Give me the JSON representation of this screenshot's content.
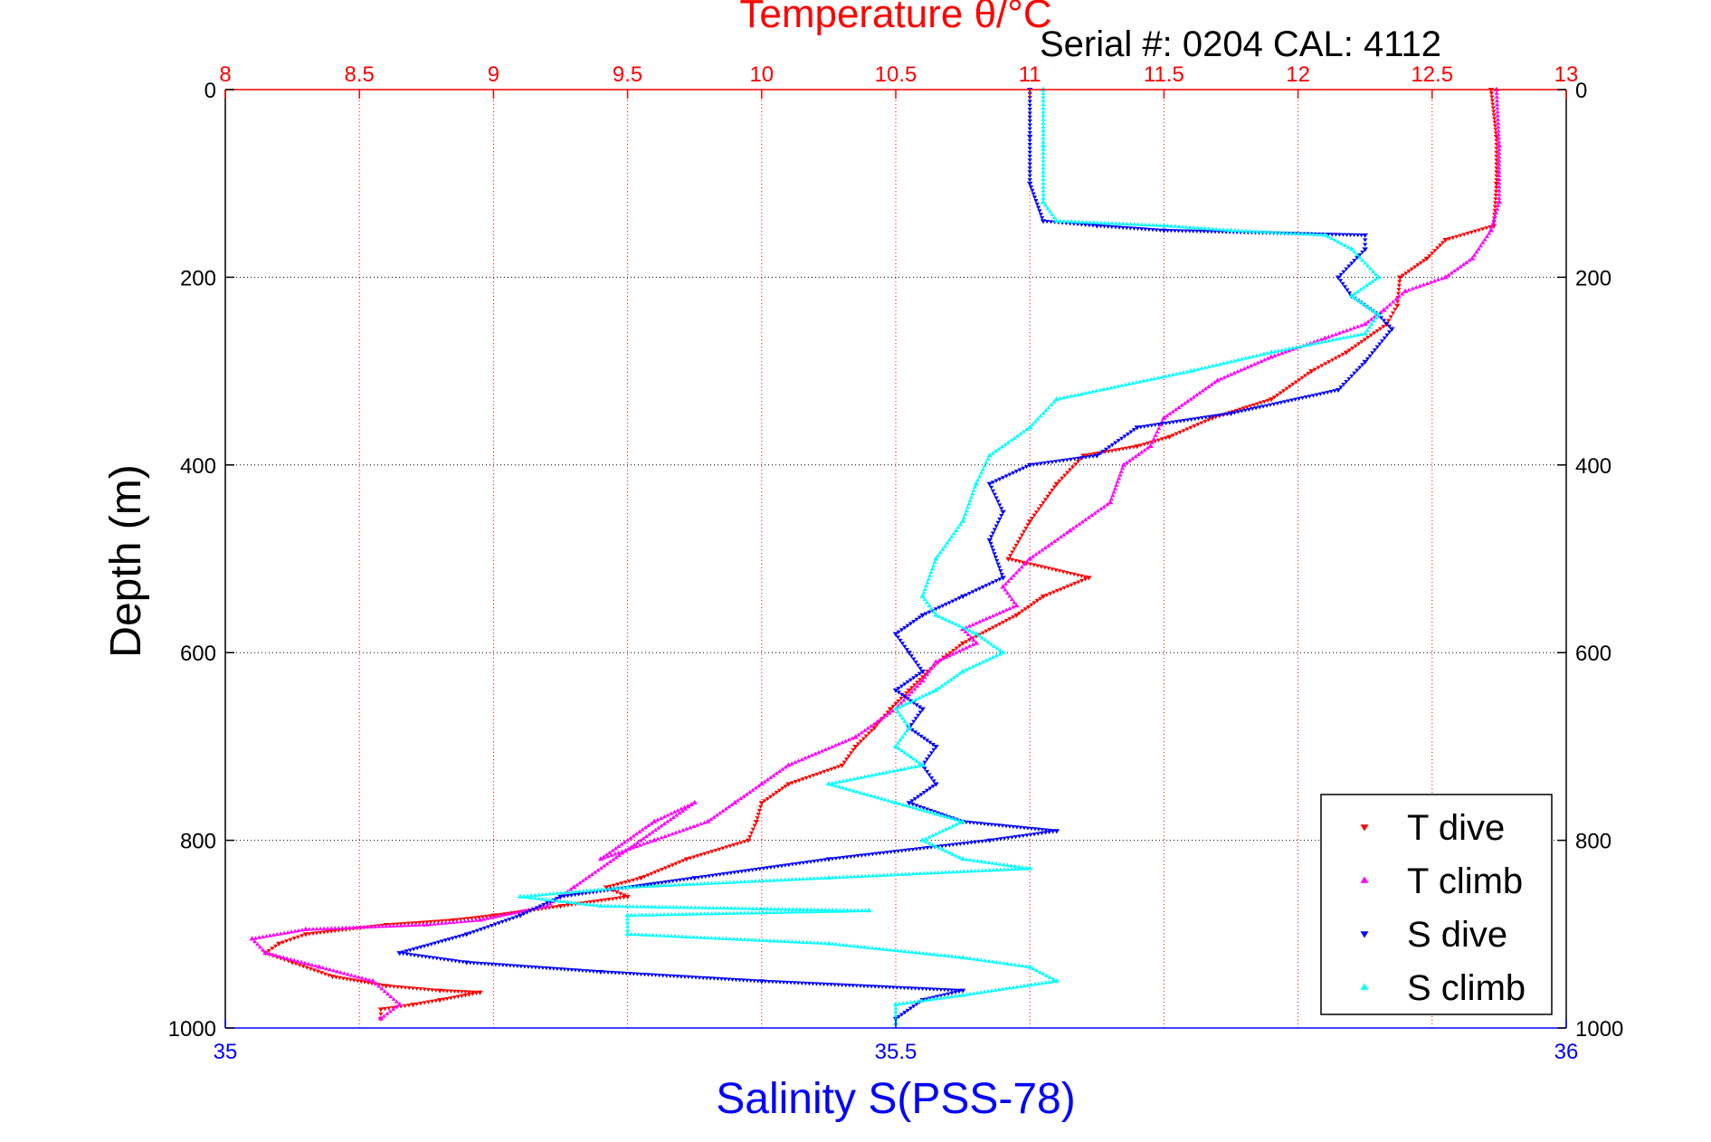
{
  "chart_data": {
    "type": "scatter",
    "title": "Temperature θ/°C",
    "subtitle": "Serial #: 0204  CAL: 4112",
    "xlabel": "Salinity S(PSS-78)",
    "ylabel": "Depth (m)",
    "x_bottom": {
      "label": "Salinity S(PSS-78)",
      "lim": [
        35,
        36
      ],
      "ticks": [
        35,
        35.5,
        36
      ],
      "tick_labels": [
        "35",
        "35.5",
        "36"
      ],
      "color": "#0000ff"
    },
    "x_top": {
      "label": "Temperature θ/°C",
      "lim": [
        8,
        13
      ],
      "ticks": [
        8,
        8.5,
        9,
        9.5,
        10,
        10.5,
        11,
        11.5,
        12,
        12.5,
        13
      ],
      "tick_labels": [
        "8",
        "8.5",
        "9",
        "9.5",
        "10",
        "10.5",
        "11",
        "11.5",
        "12",
        "12.5",
        "13"
      ],
      "color": "#ff0000"
    },
    "y": {
      "label": "Depth (m)",
      "lim": [
        0,
        1000
      ],
      "reversed": true,
      "ticks": [
        0,
        200,
        400,
        600,
        800,
        1000
      ],
      "tick_labels": [
        "0",
        "200",
        "400",
        "600",
        "800",
        "1000"
      ]
    },
    "grid": true,
    "legend_position": "bottom-right",
    "series": [
      {
        "name": "T dive",
        "axis": "temperature",
        "color": "#ff0000",
        "marker": "triangle-down",
        "points": [
          [
            12.72,
            0
          ],
          [
            12.74,
            50
          ],
          [
            12.74,
            100
          ],
          [
            12.73,
            145
          ],
          [
            12.55,
            160
          ],
          [
            12.48,
            180
          ],
          [
            12.38,
            200
          ],
          [
            12.37,
            230
          ],
          [
            12.33,
            250
          ],
          [
            12.18,
            280
          ],
          [
            12.05,
            300
          ],
          [
            11.9,
            330
          ],
          [
            11.68,
            350
          ],
          [
            11.52,
            370
          ],
          [
            11.4,
            380
          ],
          [
            11.2,
            390
          ],
          [
            11.1,
            420
          ],
          [
            11.0,
            460
          ],
          [
            10.92,
            500
          ],
          [
            11.22,
            520
          ],
          [
            11.05,
            540
          ],
          [
            10.95,
            560
          ],
          [
            10.75,
            590
          ],
          [
            10.68,
            605
          ],
          [
            10.62,
            620
          ],
          [
            10.55,
            640
          ],
          [
            10.48,
            660
          ],
          [
            10.42,
            680
          ],
          [
            10.35,
            700
          ],
          [
            10.3,
            720
          ],
          [
            10.1,
            740
          ],
          [
            10.0,
            760
          ],
          [
            9.98,
            780
          ],
          [
            9.95,
            800
          ],
          [
            9.72,
            820
          ],
          [
            9.55,
            840
          ],
          [
            9.42,
            850
          ],
          [
            9.5,
            860
          ],
          [
            9.25,
            870
          ],
          [
            9.0,
            880
          ],
          [
            8.85,
            885
          ],
          [
            8.6,
            890
          ],
          [
            8.3,
            900
          ],
          [
            8.2,
            910
          ],
          [
            8.15,
            920
          ],
          [
            8.25,
            930
          ],
          [
            8.4,
            945
          ],
          [
            8.6,
            955
          ],
          [
            8.8,
            960
          ],
          [
            8.95,
            962
          ],
          [
            8.8,
            970
          ],
          [
            8.7,
            975
          ],
          [
            8.58,
            980
          ],
          [
            8.58,
            990
          ]
        ]
      },
      {
        "name": "T climb",
        "axis": "temperature",
        "color": "#ff00ff",
        "marker": "triangle-up",
        "points": [
          [
            12.74,
            0
          ],
          [
            12.75,
            60
          ],
          [
            12.75,
            120
          ],
          [
            12.72,
            150
          ],
          [
            12.65,
            180
          ],
          [
            12.55,
            200
          ],
          [
            12.4,
            215
          ],
          [
            12.32,
            235
          ],
          [
            12.25,
            250
          ],
          [
            12.1,
            265
          ],
          [
            11.9,
            285
          ],
          [
            11.7,
            310
          ],
          [
            11.5,
            350
          ],
          [
            11.45,
            380
          ],
          [
            11.35,
            400
          ],
          [
            11.3,
            440
          ],
          [
            11.15,
            470
          ],
          [
            11.0,
            500
          ],
          [
            10.9,
            530
          ],
          [
            10.95,
            550
          ],
          [
            10.75,
            575
          ],
          [
            10.8,
            590
          ],
          [
            10.65,
            610
          ],
          [
            10.6,
            630
          ],
          [
            10.5,
            660
          ],
          [
            10.35,
            690
          ],
          [
            10.1,
            720
          ],
          [
            10.0,
            740
          ],
          [
            9.9,
            760
          ],
          [
            9.8,
            780
          ],
          [
            9.6,
            800
          ],
          [
            9.4,
            820
          ],
          [
            9.6,
            780
          ],
          [
            9.75,
            760
          ],
          [
            9.3,
            850
          ],
          [
            9.2,
            870
          ],
          [
            8.95,
            885
          ],
          [
            8.75,
            890
          ],
          [
            8.3,
            895
          ],
          [
            8.1,
            905
          ],
          [
            8.15,
            920
          ],
          [
            8.35,
            935
          ],
          [
            8.55,
            950
          ],
          [
            8.65,
            975
          ],
          [
            8.58,
            990
          ]
        ]
      },
      {
        "name": "S dive",
        "axis": "salinity",
        "color": "#0000ff",
        "marker": "triangle-down",
        "points": [
          [
            35.6,
            0
          ],
          [
            35.6,
            50
          ],
          [
            35.6,
            100
          ],
          [
            35.61,
            140
          ],
          [
            35.65,
            145
          ],
          [
            35.7,
            150
          ],
          [
            35.85,
            155
          ],
          [
            35.85,
            170
          ],
          [
            35.83,
            200
          ],
          [
            35.84,
            220
          ],
          [
            35.86,
            240
          ],
          [
            35.87,
            255
          ],
          [
            35.85,
            290
          ],
          [
            35.83,
            320
          ],
          [
            35.75,
            345
          ],
          [
            35.68,
            360
          ],
          [
            35.65,
            390
          ],
          [
            35.6,
            400
          ],
          [
            35.57,
            420
          ],
          [
            35.58,
            450
          ],
          [
            35.57,
            480
          ],
          [
            35.58,
            520
          ],
          [
            35.55,
            540
          ],
          [
            35.52,
            560
          ],
          [
            35.5,
            580
          ],
          [
            35.51,
            600
          ],
          [
            35.52,
            620
          ],
          [
            35.5,
            640
          ],
          [
            35.52,
            660
          ],
          [
            35.51,
            680
          ],
          [
            35.53,
            700
          ],
          [
            35.52,
            720
          ],
          [
            35.53,
            740
          ],
          [
            35.51,
            760
          ],
          [
            35.55,
            780
          ],
          [
            35.62,
            790
          ],
          [
            35.57,
            800
          ],
          [
            35.45,
            820
          ],
          [
            35.35,
            840
          ],
          [
            35.25,
            860
          ],
          [
            35.22,
            880
          ],
          [
            35.18,
            900
          ],
          [
            35.13,
            920
          ],
          [
            35.18,
            930
          ],
          [
            35.28,
            940
          ],
          [
            35.4,
            950
          ],
          [
            35.55,
            960
          ],
          [
            35.52,
            970
          ],
          [
            35.5,
            990
          ]
        ]
      },
      {
        "name": "S climb",
        "axis": "salinity",
        "color": "#00ffff",
        "marker": "triangle-up",
        "points": [
          [
            35.61,
            0
          ],
          [
            35.61,
            60
          ],
          [
            35.61,
            120
          ],
          [
            35.62,
            140
          ],
          [
            35.7,
            145
          ],
          [
            35.75,
            150
          ],
          [
            35.82,
            155
          ],
          [
            35.84,
            170
          ],
          [
            35.86,
            200
          ],
          [
            35.84,
            220
          ],
          [
            35.86,
            240
          ],
          [
            35.85,
            260
          ],
          [
            35.78,
            280
          ],
          [
            35.72,
            300
          ],
          [
            35.62,
            330
          ],
          [
            35.6,
            360
          ],
          [
            35.57,
            390
          ],
          [
            35.56,
            420
          ],
          [
            35.55,
            460
          ],
          [
            35.53,
            500
          ],
          [
            35.52,
            540
          ],
          [
            35.53,
            560
          ],
          [
            35.56,
            580
          ],
          [
            35.58,
            600
          ],
          [
            35.55,
            620
          ],
          [
            35.53,
            640
          ],
          [
            35.5,
            660
          ],
          [
            35.51,
            680
          ],
          [
            35.5,
            700
          ],
          [
            35.52,
            720
          ],
          [
            35.45,
            740
          ],
          [
            35.5,
            760
          ],
          [
            35.55,
            780
          ],
          [
            35.52,
            800
          ],
          [
            35.55,
            820
          ],
          [
            35.6,
            830
          ],
          [
            35.45,
            840
          ],
          [
            35.3,
            850
          ],
          [
            35.22,
            860
          ],
          [
            35.28,
            870
          ],
          [
            35.48,
            875
          ],
          [
            35.3,
            880
          ],
          [
            35.3,
            900
          ],
          [
            35.45,
            910
          ],
          [
            35.55,
            925
          ],
          [
            35.6,
            935
          ],
          [
            35.62,
            950
          ],
          [
            35.55,
            965
          ],
          [
            35.5,
            975
          ],
          [
            35.5,
            995
          ]
        ]
      }
    ]
  }
}
